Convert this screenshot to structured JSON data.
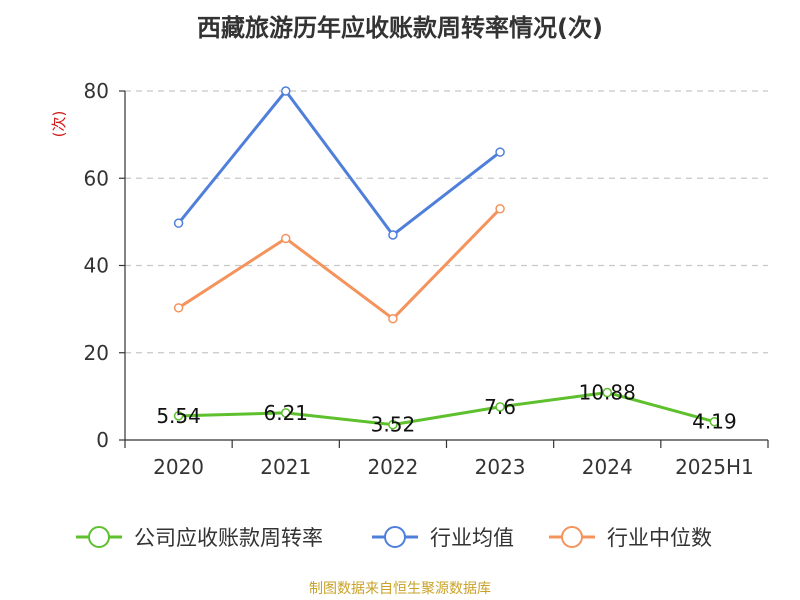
{
  "chart_data": {
    "type": "line",
    "title": "西藏旅游历年应收账款周转率情况(次)",
    "ylabel": "(次)",
    "categories": [
      "2020",
      "2021",
      "2022",
      "2023",
      "2024",
      "2025H1"
    ],
    "ylim": [
      0,
      80
    ],
    "yticks": [
      0,
      20,
      40,
      60,
      80
    ],
    "grid": true,
    "legend_position": "bottom",
    "series": [
      {
        "name": "公司应收账款周转率",
        "color": "#5fc02e",
        "values": [
          5.54,
          6.21,
          3.52,
          7.6,
          10.88,
          4.19
        ],
        "labels": [
          "5.54",
          "6.21",
          "3.52",
          "7.6",
          "10.88",
          "4.19"
        ]
      },
      {
        "name": "行业均值",
        "color": "#4f7fdb",
        "values": [
          49.7,
          80,
          47,
          66,
          null,
          null
        ]
      },
      {
        "name": "行业中位数",
        "color": "#f4935c",
        "values": [
          30.3,
          46.2,
          27.8,
          53,
          null,
          null
        ]
      }
    ],
    "source": "制图数据来自恒生聚源数据库"
  }
}
